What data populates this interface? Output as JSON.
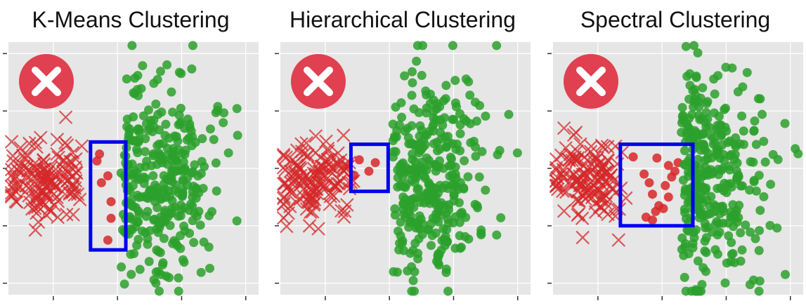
{
  "colors": {
    "panel_bg": "#e6e6e6",
    "grid": "#ffffff",
    "cluster_a": "#d62728",
    "cluster_b": "#2ca02c",
    "highlight_box": "#0000ee",
    "fail_badge": "#e0404f"
  },
  "icons": {
    "fail_badge": "x-mark-icon"
  },
  "chart_data": [
    {
      "type": "scatter",
      "title": "K-Means Clustering",
      "grid": true,
      "xlim": [
        0,
        3.9
      ],
      "ylim": [
        0,
        4.4
      ],
      "series": [
        {
          "marker": "x",
          "color": "#d62728",
          "center": [
            0.55,
            2.0
          ],
          "spread": [
            0.3,
            0.35
          ],
          "count": 140
        },
        {
          "marker": "o",
          "color": "#d62728",
          "points": [
            [
              1.42,
              2.45
            ],
            [
              1.38,
              2.33
            ],
            [
              1.55,
              2.07
            ],
            [
              1.6,
              1.62
            ],
            [
              1.55,
              0.95
            ],
            [
              1.6,
              1.33
            ],
            [
              1.45,
              1.95
            ]
          ]
        },
        {
          "marker": "o",
          "color": "#2ca02c",
          "center": [
            2.35,
            2.0
          ],
          "spread": [
            0.45,
            0.9
          ],
          "count": 330
        }
      ],
      "highlight_box": {
        "x": [
          1.28,
          1.83
        ],
        "y": [
          0.78,
          2.66
        ]
      },
      "status": "fail"
    },
    {
      "type": "scatter",
      "title": "Hierarchical Clustering",
      "grid": true,
      "xlim": [
        0,
        3.9
      ],
      "ylim": [
        0,
        4.4
      ],
      "series": [
        {
          "marker": "x",
          "color": "#d62728",
          "center": [
            0.55,
            2.0
          ],
          "spread": [
            0.3,
            0.35
          ],
          "count": 140
        },
        {
          "marker": "o",
          "color": "#d62728",
          "points": [
            [
              1.23,
              2.35
            ],
            [
              1.48,
              2.3
            ],
            [
              1.38,
              2.15
            ],
            [
              1.15,
              2.08
            ]
          ]
        },
        {
          "marker": "o",
          "color": "#2ca02c",
          "center": [
            2.35,
            2.0
          ],
          "spread": [
            0.45,
            0.9
          ],
          "count": 330
        }
      ],
      "highlight_box": {
        "x": [
          1.1,
          1.68
        ],
        "y": [
          1.8,
          2.62
        ]
      },
      "status": "fail"
    },
    {
      "type": "scatter",
      "title": "Spectral Clustering",
      "grid": true,
      "xlim": [
        0,
        3.9
      ],
      "ylim": [
        0,
        4.4
      ],
      "series": [
        {
          "marker": "x",
          "color": "#d62728",
          "center": [
            0.55,
            2.0
          ],
          "spread": [
            0.3,
            0.35
          ],
          "count": 140
        },
        {
          "marker": "o",
          "color": "#d62728",
          "points": [
            [
              1.25,
              2.4
            ],
            [
              1.42,
              2.1
            ],
            [
              1.62,
              2.38
            ],
            [
              1.8,
              2.25
            ],
            [
              1.85,
              2.05
            ],
            [
              1.75,
              1.9
            ],
            [
              1.55,
              1.75
            ],
            [
              1.5,
              1.95
            ],
            [
              1.65,
              1.55
            ],
            [
              1.55,
              1.3
            ],
            [
              1.6,
              1.45
            ],
            [
              1.72,
              1.5
            ],
            [
              1.9,
              2.15
            ],
            [
              1.95,
              2.3
            ],
            [
              1.45,
              1.35
            ],
            [
              1.8,
              1.7
            ]
          ]
        },
        {
          "marker": "o",
          "color": "#2ca02c",
          "center": [
            2.45,
            2.0
          ],
          "spread": [
            0.45,
            0.9
          ],
          "count": 330
        }
      ],
      "highlight_box": {
        "x": [
          1.05,
          2.18
        ],
        "y": [
          1.2,
          2.62
        ]
      },
      "status": "fail"
    }
  ]
}
